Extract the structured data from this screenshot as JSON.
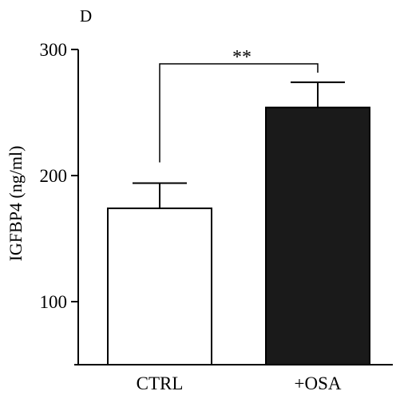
{
  "panel_label": "D",
  "chart_data": {
    "type": "bar",
    "categories": [
      "CTRL",
      "+OSA"
    ],
    "values": [
      174,
      254
    ],
    "errors": [
      20,
      20
    ],
    "bar_colors": [
      "#ffffff",
      "#1a1a1a"
    ],
    "ylabel": "IGFBP4 (ng/ml)",
    "xlabel": "",
    "ylim": [
      50,
      300
    ],
    "yticks": [
      100,
      200,
      300
    ],
    "ytick_labels": [
      "100",
      "200",
      "300"
    ],
    "significance": {
      "between": [
        "CTRL",
        "+OSA"
      ],
      "label": "**"
    },
    "grid": false,
    "legend": null
  }
}
